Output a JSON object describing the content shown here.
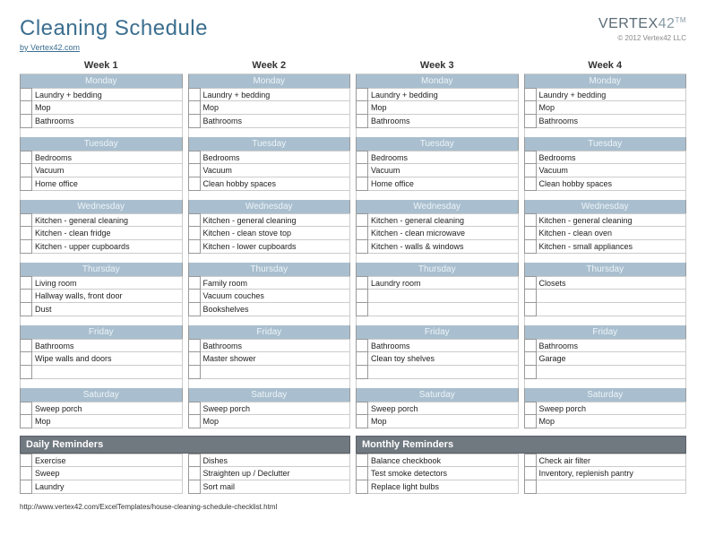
{
  "header": {
    "title": "Cleaning Schedule",
    "byline": "by Vertex42.com",
    "brand_prefix": "VERTEX",
    "brand_suffix": "42",
    "tm": "TM",
    "copyright": "© 2012 Vertex42 LLC"
  },
  "colors": {
    "title": "#3b6e8f",
    "day_header_bg": "#a9bfcf",
    "day_header_text": "#eef4f8",
    "reminder_bg": "#707880",
    "border": "#999999",
    "light_border": "#cccccc",
    "text": "#222222"
  },
  "weeks": [
    {
      "title": "Week 1",
      "days": [
        {
          "name": "Monday",
          "tasks": [
            "Laundry + bedding",
            "Mop",
            "Bathrooms"
          ]
        },
        {
          "name": "Tuesday",
          "tasks": [
            "Bedrooms",
            "Vacuum",
            "Home office"
          ]
        },
        {
          "name": "Wednesday",
          "tasks": [
            "Kitchen - general cleaning",
            "Kitchen - clean fridge",
            "Kitchen - upper cupboards"
          ]
        },
        {
          "name": "Thursday",
          "tasks": [
            "Living room",
            "Hallway walls, front door",
            "Dust"
          ]
        },
        {
          "name": "Friday",
          "tasks": [
            "Bathrooms",
            "Wipe walls and doors",
            ""
          ]
        },
        {
          "name": "Saturday",
          "tasks": [
            "Sweep porch",
            "Mop"
          ]
        }
      ]
    },
    {
      "title": "Week 2",
      "days": [
        {
          "name": "Monday",
          "tasks": [
            "Laundry + bedding",
            "Mop",
            "Bathrooms"
          ]
        },
        {
          "name": "Tuesday",
          "tasks": [
            "Bedrooms",
            "Vacuum",
            "Clean hobby spaces"
          ]
        },
        {
          "name": "Wednesday",
          "tasks": [
            "Kitchen - general cleaning",
            "Kitchen - clean stove top",
            "Kitchen - lower cupboards"
          ]
        },
        {
          "name": "Thursday",
          "tasks": [
            "Family room",
            "Vacuum couches",
            "Bookshelves"
          ]
        },
        {
          "name": "Friday",
          "tasks": [
            "Bathrooms",
            "Master shower",
            ""
          ]
        },
        {
          "name": "Saturday",
          "tasks": [
            "Sweep porch",
            "Mop"
          ]
        }
      ]
    },
    {
      "title": "Week 3",
      "days": [
        {
          "name": "Monday",
          "tasks": [
            "Laundry + bedding",
            "Mop",
            "Bathrooms"
          ]
        },
        {
          "name": "Tuesday",
          "tasks": [
            "Bedrooms",
            "Vacuum",
            "Home office"
          ]
        },
        {
          "name": "Wednesday",
          "tasks": [
            "Kitchen - general cleaning",
            "Kitchen - clean microwave",
            "Kitchen - walls & windows"
          ]
        },
        {
          "name": "Thursday",
          "tasks": [
            "Laundry room",
            "",
            ""
          ]
        },
        {
          "name": "Friday",
          "tasks": [
            "Bathrooms",
            "Clean toy shelves",
            ""
          ]
        },
        {
          "name": "Saturday",
          "tasks": [
            "Sweep porch",
            "Mop"
          ]
        }
      ]
    },
    {
      "title": "Week 4",
      "days": [
        {
          "name": "Monday",
          "tasks": [
            "Laundry + bedding",
            "Mop",
            "Bathrooms"
          ]
        },
        {
          "name": "Tuesday",
          "tasks": [
            "Bedrooms",
            "Vacuum",
            "Clean hobby spaces"
          ]
        },
        {
          "name": "Wednesday",
          "tasks": [
            "Kitchen - general cleaning",
            "Kitchen - clean oven",
            "Kitchen - small appliances"
          ]
        },
        {
          "name": "Thursday",
          "tasks": [
            "Closets",
            "",
            ""
          ]
        },
        {
          "name": "Friday",
          "tasks": [
            "Bathrooms",
            "Garage",
            ""
          ]
        },
        {
          "name": "Saturday",
          "tasks": [
            "Sweep porch",
            "Mop"
          ]
        }
      ]
    }
  ],
  "reminders": {
    "daily": {
      "title": "Daily Reminders",
      "cols": [
        [
          "Exercise",
          "Sweep",
          "Laundry"
        ],
        [
          "Dishes",
          "Straighten up / Declutter",
          "Sort mail"
        ]
      ]
    },
    "monthly": {
      "title": "Monthly Reminders",
      "cols": [
        [
          "Balance checkbook",
          "Test smoke detectors",
          "Replace light bulbs"
        ],
        [
          "Check air filter",
          "Inventory, replenish pantry",
          ""
        ]
      ]
    }
  },
  "footer_url": "http://www.vertex42.com/ExcelTemplates/house-cleaning-schedule-checklist.html"
}
